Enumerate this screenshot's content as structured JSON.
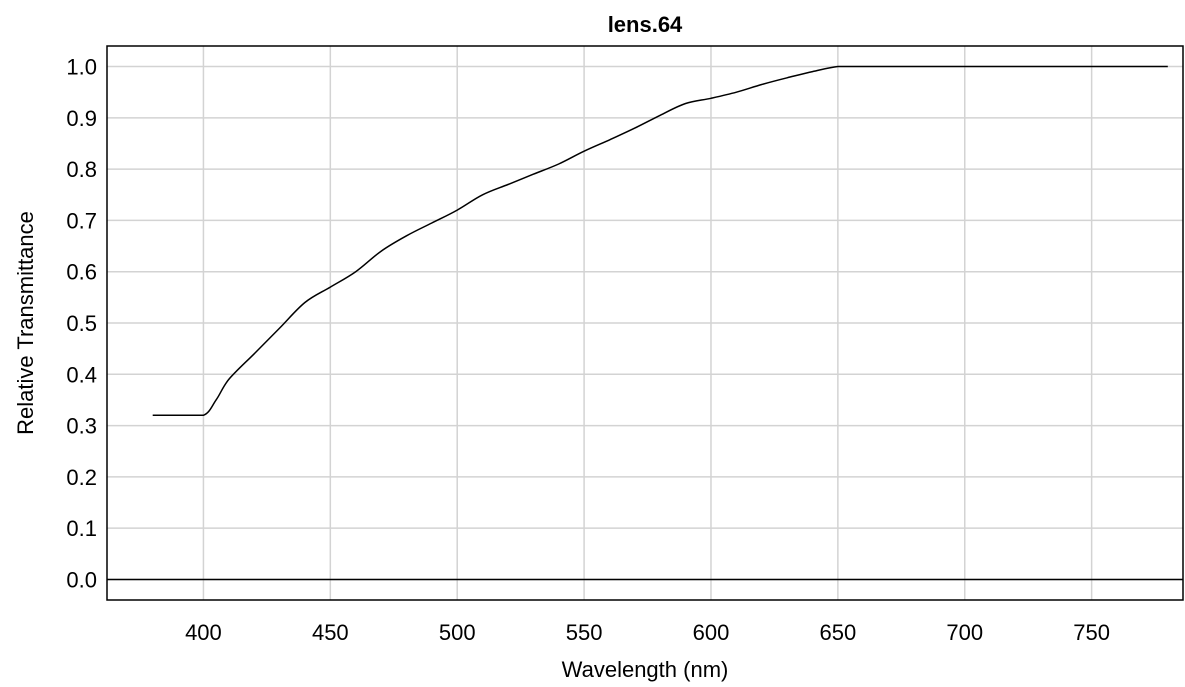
{
  "chart_data": {
    "type": "line",
    "title": "lens.64",
    "xlabel": "Wavelength (nm)",
    "ylabel": "Relative Transmittance",
    "xlim": [
      362,
      786
    ],
    "ylim": [
      -0.04,
      1.04
    ],
    "grid": true,
    "legend": "none",
    "xticks": [
      400,
      450,
      500,
      550,
      600,
      650,
      700,
      750
    ],
    "xtick_labels": [
      "400",
      "450",
      "500",
      "550",
      "600",
      "650",
      "700",
      "750"
    ],
    "yticks": [
      0.0,
      0.1,
      0.2,
      0.3,
      0.4,
      0.5,
      0.6,
      0.7,
      0.8,
      0.9,
      1.0
    ],
    "ytick_labels": [
      "0.0",
      "0.1",
      "0.2",
      "0.3",
      "0.4",
      "0.5",
      "0.6",
      "0.7",
      "0.8",
      "0.9",
      "1.0"
    ],
    "reference_line_y": 0.0,
    "colors": {
      "line": "#000000",
      "grid": "#d3d3d3",
      "axis": "#000000"
    },
    "series": [
      {
        "x": [
          380,
          390,
          400,
          405,
          410,
          420,
          430,
          440,
          450,
          460,
          470,
          480,
          490,
          500,
          510,
          520,
          530,
          540,
          550,
          560,
          570,
          580,
          590,
          600,
          610,
          620,
          630,
          640,
          650,
          660,
          670,
          680,
          690,
          700,
          710,
          720,
          730,
          740,
          750,
          760,
          770,
          780
        ],
        "y": [
          0.32,
          0.32,
          0.32,
          0.35,
          0.39,
          0.44,
          0.49,
          0.54,
          0.57,
          0.6,
          0.64,
          0.67,
          0.695,
          0.72,
          0.75,
          0.77,
          0.79,
          0.81,
          0.835,
          0.857,
          0.88,
          0.905,
          0.928,
          0.938,
          0.95,
          0.965,
          0.978,
          0.99,
          1.0,
          1.0,
          1.0,
          1.0,
          1.0,
          1.0,
          1.0,
          1.0,
          1.0,
          1.0,
          1.0,
          1.0,
          1.0,
          1.0
        ]
      }
    ]
  }
}
